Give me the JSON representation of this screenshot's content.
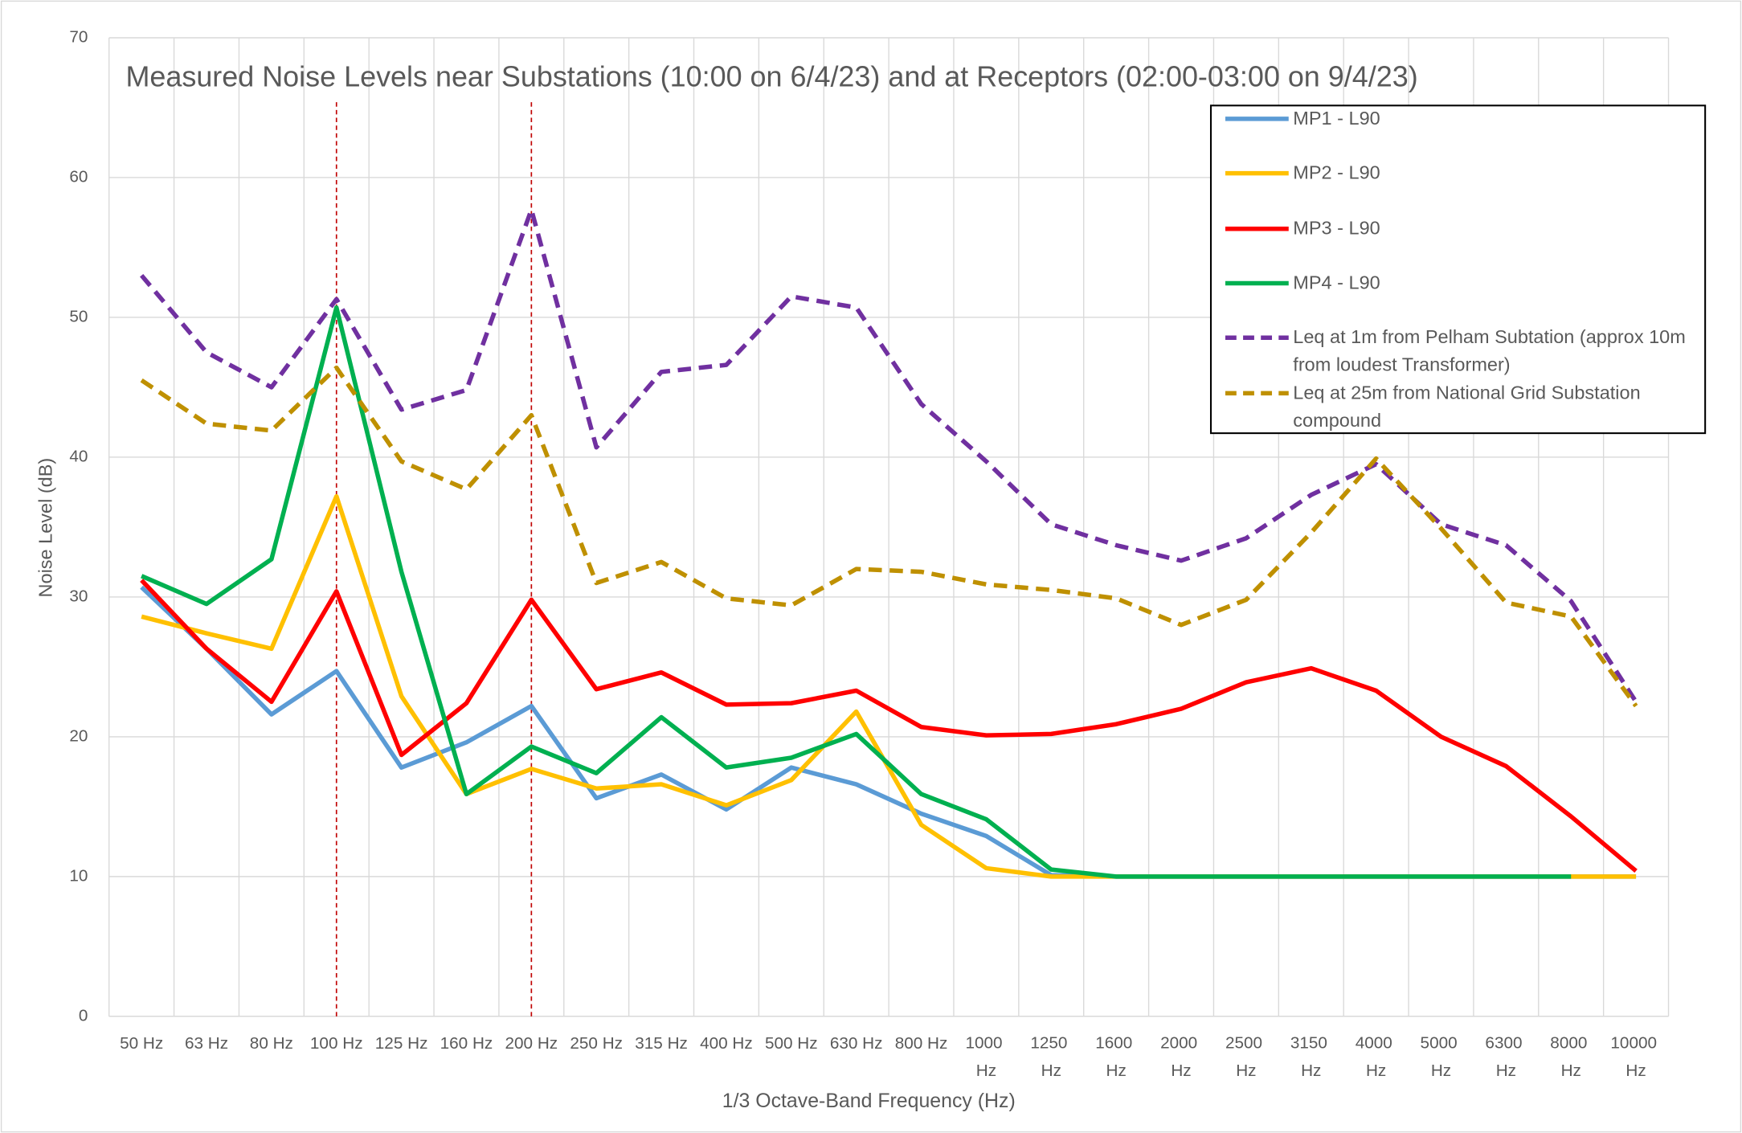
{
  "chart_data": {
    "type": "line",
    "title": "Measured Noise Levels near Substations (10:00 on 6/4/23) and at Receptors (02:00-03:00 on 9/4/23)",
    "x_label": "1/3 Octave-Band Frequency (Hz)",
    "y_label": "Noise Level (dB)",
    "categories": [
      "50 Hz",
      "63 Hz",
      "80 Hz",
      "100 Hz",
      "125 Hz",
      "160 Hz",
      "200 Hz",
      "250 Hz",
      "315 Hz",
      "400 Hz",
      "500 Hz",
      "630 Hz",
      "800 Hz",
      "1000 Hz",
      "1250 Hz",
      "1600 Hz",
      "2000 Hz",
      "2500 Hz",
      "3150 Hz",
      "4000 Hz",
      "5000 Hz",
      "6300 Hz",
      "8000 Hz",
      "10000 Hz"
    ],
    "ylim": [
      0,
      70
    ],
    "yticks": [
      0,
      10,
      20,
      30,
      40,
      50,
      60,
      70
    ],
    "grid": true,
    "legend": "upper right",
    "vertical_markers": {
      "categories": [
        "100 Hz",
        "200 Hz"
      ],
      "color": "#c00000"
    },
    "series": [
      {
        "name": "MP1 - L90",
        "color": "#5b9bd5",
        "dash": false,
        "values": [
          30.7,
          26.3,
          21.6,
          24.7,
          17.8,
          19.6,
          22.2,
          15.6,
          17.3,
          14.8,
          17.8,
          16.6,
          14.5,
          12.9,
          10.1,
          10,
          10,
          10,
          10,
          10,
          10,
          10,
          10,
          10
        ]
      },
      {
        "name": "MP2 - L90",
        "color": "#ffc000",
        "dash": false,
        "values": [
          28.6,
          27.4,
          26.3,
          37.2,
          22.9,
          15.9,
          17.7,
          16.3,
          16.6,
          15.1,
          16.9,
          21.8,
          13.7,
          10.6,
          10,
          10,
          10,
          10,
          10,
          10,
          10,
          10,
          10,
          10
        ]
      },
      {
        "name": "MP3 - L90",
        "color": "#ff0000",
        "dash": false,
        "values": [
          31.2,
          26.3,
          22.5,
          30.4,
          18.7,
          22.4,
          29.8,
          23.4,
          24.6,
          22.3,
          22.4,
          23.3,
          20.7,
          20.1,
          20.2,
          20.9,
          22.0,
          23.9,
          24.9,
          23.3,
          20.0,
          17.9,
          14.3,
          10.4
        ]
      },
      {
        "name": "MP4 - L90",
        "color": "#00b050",
        "dash": false,
        "values": [
          31.5,
          29.5,
          32.7,
          50.7,
          31.8,
          15.9,
          19.3,
          17.4,
          21.4,
          17.8,
          18.5,
          20.2,
          15.9,
          14.1,
          10.5,
          10,
          10,
          10,
          10,
          10,
          10,
          10,
          10,
          null
        ]
      },
      {
        "name": "Leq at 1m from Pelham Subtation (approx 10m from loudest Transformer)",
        "color": "#7030a0",
        "dash": true,
        "values": [
          53.0,
          47.5,
          45.0,
          51.3,
          43.4,
          44.8,
          57.7,
          40.7,
          46.1,
          46.6,
          51.5,
          50.7,
          43.8,
          39.7,
          35.2,
          33.7,
          32.6,
          34.2,
          37.3,
          39.5,
          35.2,
          33.7,
          29.7,
          22.5
        ]
      },
      {
        "name": "Leq at 25m from National Grid Substation compound",
        "color": "#bf9000",
        "dash": true,
        "values": [
          45.5,
          42.4,
          41.9,
          46.4,
          39.7,
          37.7,
          43.0,
          31.0,
          32.5,
          29.9,
          29.4,
          32.0,
          31.8,
          30.9,
          30.5,
          29.9,
          28.0,
          29.8,
          34.6,
          39.9,
          34.9,
          29.6,
          28.6,
          22.2
        ]
      }
    ]
  }
}
